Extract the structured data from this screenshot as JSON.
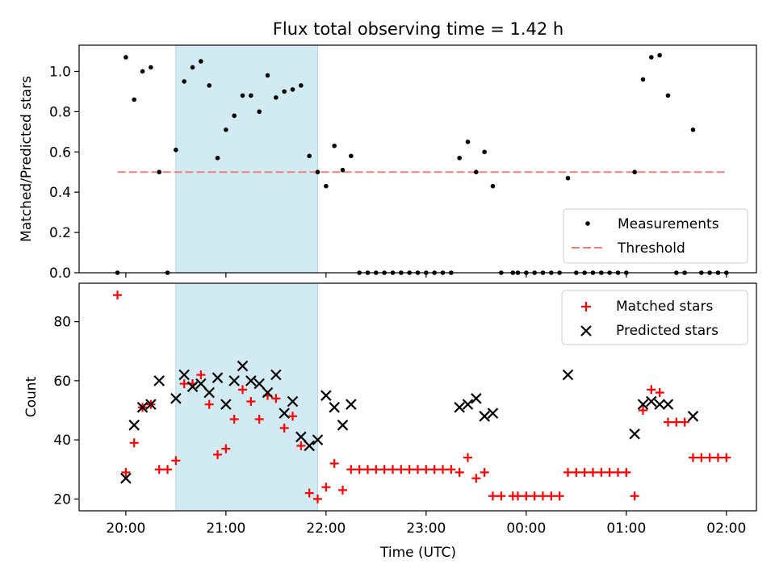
{
  "figure": {
    "title": "Flux total observing time = 1.42 h",
    "xlabel": "Time (UTC)",
    "x_tick_labels": [
      "20:00",
      "21:00",
      "22:00",
      "23:00",
      "00:00",
      "01:00",
      "02:00"
    ]
  },
  "chart_data": [
    {
      "type": "scatter",
      "panel": "top",
      "ylabel": "Matched/Predicted stars",
      "xlim": [
        "19:32",
        "02:18"
      ],
      "ylim": [
        0,
        1.13
      ],
      "y_ticks": [
        "0.0",
        "0.2",
        "0.4",
        "0.6",
        "0.8",
        "1.0"
      ],
      "y_tick_values": [
        0,
        0.2,
        0.4,
        0.6,
        0.8,
        1.0
      ],
      "shaded_interval": [
        "20:30",
        "21:55"
      ],
      "shade_color": "#add8e6",
      "legend_position": "lower-right",
      "legend": [
        "Measurements",
        "Threshold"
      ],
      "series": [
        {
          "name": "Measurements",
          "marker": "dot",
          "color": "#000000",
          "points": [
            [
              "19:55",
              0.0
            ],
            [
              "20:00",
              1.07
            ],
            [
              "20:05",
              0.86
            ],
            [
              "20:10",
              1.0
            ],
            [
              "20:15",
              1.02
            ],
            [
              "20:20",
              0.5
            ],
            [
              "20:25",
              0.0
            ],
            [
              "20:30",
              0.61
            ],
            [
              "20:35",
              0.95
            ],
            [
              "20:40",
              1.02
            ],
            [
              "20:45",
              1.05
            ],
            [
              "20:50",
              0.93
            ],
            [
              "20:55",
              0.57
            ],
            [
              "21:00",
              0.71
            ],
            [
              "21:05",
              0.78
            ],
            [
              "21:10",
              0.88
            ],
            [
              "21:15",
              0.88
            ],
            [
              "21:20",
              0.8
            ],
            [
              "21:25",
              0.98
            ],
            [
              "21:30",
              0.87
            ],
            [
              "21:35",
              0.9
            ],
            [
              "21:40",
              0.91
            ],
            [
              "21:45",
              0.93
            ],
            [
              "21:50",
              0.58
            ],
            [
              "21:55",
              0.5
            ],
            [
              "22:00",
              0.43
            ],
            [
              "22:05",
              0.63
            ],
            [
              "22:10",
              0.51
            ],
            [
              "22:15",
              0.58
            ],
            [
              "22:20",
              0.0
            ],
            [
              "22:25",
              0.0
            ],
            [
              "22:30",
              0.0
            ],
            [
              "22:35",
              0.0
            ],
            [
              "22:40",
              0.0
            ],
            [
              "22:45",
              0.0
            ],
            [
              "22:50",
              0.0
            ],
            [
              "22:55",
              0.0
            ],
            [
              "23:00",
              0.0
            ],
            [
              "23:05",
              0.0
            ],
            [
              "23:10",
              0.0
            ],
            [
              "23:15",
              0.0
            ],
            [
              "23:20",
              0.57
            ],
            [
              "23:25",
              0.65
            ],
            [
              "23:30",
              0.5
            ],
            [
              "23:35",
              0.6
            ],
            [
              "23:40",
              0.43
            ],
            [
              "23:45",
              0.0
            ],
            [
              "23:52",
              0.0
            ],
            [
              "23:55",
              0.0
            ],
            [
              "00:00",
              0.0
            ],
            [
              "00:05",
              0.0
            ],
            [
              "00:10",
              0.0
            ],
            [
              "00:15",
              0.0
            ],
            [
              "00:20",
              0.0
            ],
            [
              "00:25",
              0.47
            ],
            [
              "00:30",
              0.0
            ],
            [
              "00:35",
              0.0
            ],
            [
              "00:40",
              0.0
            ],
            [
              "00:45",
              0.0
            ],
            [
              "00:50",
              0.0
            ],
            [
              "00:55",
              0.0
            ],
            [
              "01:00",
              0.0
            ],
            [
              "01:05",
              0.5
            ],
            [
              "01:10",
              0.96
            ],
            [
              "01:15",
              1.07
            ],
            [
              "01:20",
              1.08
            ],
            [
              "01:25",
              0.88
            ],
            [
              "01:30",
              0.0
            ],
            [
              "01:35",
              0.0
            ],
            [
              "01:40",
              0.71
            ],
            [
              "01:45",
              0.0
            ],
            [
              "01:50",
              0.0
            ],
            [
              "01:55",
              0.0
            ],
            [
              "02:00",
              0.0
            ]
          ]
        },
        {
          "name": "Threshold",
          "style": "dashed",
          "color": "#f08080",
          "points": [
            [
              "19:55",
              0.5
            ],
            [
              "02:00",
              0.5
            ]
          ]
        }
      ]
    },
    {
      "type": "scatter",
      "panel": "bottom",
      "ylabel": "Count",
      "xlim": [
        "19:32",
        "02:18"
      ],
      "ylim": [
        16,
        93
      ],
      "y_ticks": [
        "20",
        "40",
        "60",
        "80"
      ],
      "y_tick_values": [
        20,
        40,
        60,
        80
      ],
      "shaded_interval": [
        "20:30",
        "21:55"
      ],
      "shade_color": "#add8e6",
      "legend_position": "upper-right",
      "legend": [
        "Matched stars",
        "Predicted stars"
      ],
      "series": [
        {
          "name": "Matched stars",
          "marker": "plus",
          "color": "#ff0000",
          "points": [
            [
              "19:55",
              89
            ],
            [
              "20:00",
              29
            ],
            [
              "20:05",
              39
            ],
            [
              "20:10",
              51
            ],
            [
              "20:15",
              52
            ],
            [
              "20:20",
              30
            ],
            [
              "20:25",
              30
            ],
            [
              "20:30",
              33
            ],
            [
              "20:35",
              59
            ],
            [
              "20:40",
              59
            ],
            [
              "20:45",
              62
            ],
            [
              "20:50",
              52
            ],
            [
              "20:55",
              35
            ],
            [
              "21:00",
              37
            ],
            [
              "21:05",
              47
            ],
            [
              "21:10",
              57
            ],
            [
              "21:15",
              53
            ],
            [
              "21:20",
              47
            ],
            [
              "21:25",
              55
            ],
            [
              "21:30",
              54
            ],
            [
              "21:35",
              44
            ],
            [
              "21:40",
              48
            ],
            [
              "21:45",
              38
            ],
            [
              "21:50",
              22
            ],
            [
              "21:55",
              20
            ],
            [
              "22:00",
              24
            ],
            [
              "22:05",
              32
            ],
            [
              "22:10",
              23
            ],
            [
              "22:15",
              30
            ],
            [
              "22:20",
              30
            ],
            [
              "22:25",
              30
            ],
            [
              "22:30",
              30
            ],
            [
              "22:35",
              30
            ],
            [
              "22:40",
              30
            ],
            [
              "22:45",
              30
            ],
            [
              "22:50",
              30
            ],
            [
              "22:55",
              30
            ],
            [
              "23:00",
              30
            ],
            [
              "23:05",
              30
            ],
            [
              "23:10",
              30
            ],
            [
              "23:15",
              30
            ],
            [
              "23:20",
              29
            ],
            [
              "23:25",
              34
            ],
            [
              "23:30",
              27
            ],
            [
              "23:35",
              29
            ],
            [
              "23:40",
              21
            ],
            [
              "23:45",
              21
            ],
            [
              "23:52",
              21
            ],
            [
              "23:55",
              21
            ],
            [
              "00:00",
              21
            ],
            [
              "00:05",
              21
            ],
            [
              "00:10",
              21
            ],
            [
              "00:15",
              21
            ],
            [
              "00:20",
              21
            ],
            [
              "00:25",
              29
            ],
            [
              "00:30",
              29
            ],
            [
              "00:35",
              29
            ],
            [
              "00:40",
              29
            ],
            [
              "00:45",
              29
            ],
            [
              "00:50",
              29
            ],
            [
              "00:55",
              29
            ],
            [
              "01:00",
              29
            ],
            [
              "01:05",
              21
            ],
            [
              "01:10",
              50
            ],
            [
              "01:15",
              57
            ],
            [
              "01:20",
              56
            ],
            [
              "01:25",
              46
            ],
            [
              "01:30",
              46
            ],
            [
              "01:35",
              46
            ],
            [
              "01:40",
              34
            ],
            [
              "01:45",
              34
            ],
            [
              "01:50",
              34
            ],
            [
              "01:55",
              34
            ],
            [
              "02:00",
              34
            ]
          ]
        },
        {
          "name": "Predicted stars",
          "marker": "x",
          "color": "#000000",
          "points": [
            [
              "20:00",
              27
            ],
            [
              "20:05",
              45
            ],
            [
              "20:10",
              51
            ],
            [
              "20:15",
              52
            ],
            [
              "20:20",
              60
            ],
            [
              "20:30",
              54
            ],
            [
              "20:35",
              62
            ],
            [
              "20:40",
              58
            ],
            [
              "20:45",
              59
            ],
            [
              "20:50",
              56
            ],
            [
              "20:55",
              61
            ],
            [
              "21:00",
              52
            ],
            [
              "21:05",
              60
            ],
            [
              "21:10",
              65
            ],
            [
              "21:15",
              60
            ],
            [
              "21:20",
              59
            ],
            [
              "21:25",
              56
            ],
            [
              "21:30",
              62
            ],
            [
              "21:35",
              49
            ],
            [
              "21:40",
              53
            ],
            [
              "21:45",
              41
            ],
            [
              "21:50",
              38
            ],
            [
              "21:55",
              40
            ],
            [
              "22:00",
              55
            ],
            [
              "22:05",
              51
            ],
            [
              "22:10",
              45
            ],
            [
              "22:15",
              52
            ],
            [
              "23:20",
              51
            ],
            [
              "23:25",
              52
            ],
            [
              "23:30",
              54
            ],
            [
              "23:35",
              48
            ],
            [
              "23:40",
              49
            ],
            [
              "00:25",
              62
            ],
            [
              "01:05",
              42
            ],
            [
              "01:10",
              52
            ],
            [
              "01:15",
              53
            ],
            [
              "01:20",
              52
            ],
            [
              "01:25",
              52
            ],
            [
              "01:40",
              48
            ]
          ]
        }
      ]
    }
  ]
}
